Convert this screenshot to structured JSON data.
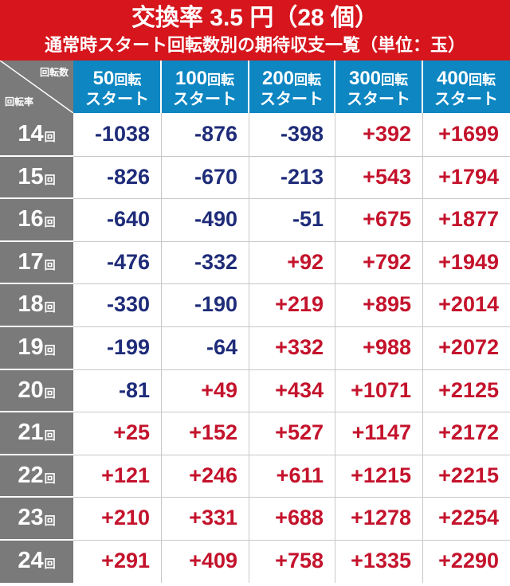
{
  "title": {
    "line1": "交換率 3.5 円（28 個）",
    "line2": "通常時スタート回転数別の期待収支一覧（単位：玉）"
  },
  "corner": {
    "top_label": "回転数",
    "bottom_label": "回転率"
  },
  "columns": [
    {
      "big": "50",
      "small": "回転",
      "line2": "スタート"
    },
    {
      "big": "100",
      "small": "回転",
      "line2": "スタート"
    },
    {
      "big": "200",
      "small": "回転",
      "line2": "スタート"
    },
    {
      "big": "300",
      "small": "回転",
      "line2": "スタート"
    },
    {
      "big": "400",
      "small": "回転",
      "line2": "スタート"
    }
  ],
  "row_unit": "回",
  "rows": [
    {
      "rate": "14",
      "values": [
        "-1038",
        "-876",
        "-398",
        "+392",
        "+1699"
      ]
    },
    {
      "rate": "15",
      "values": [
        "-826",
        "-670",
        "-213",
        "+543",
        "+1794"
      ]
    },
    {
      "rate": "16",
      "values": [
        "-640",
        "-490",
        "-51",
        "+675",
        "+1877"
      ]
    },
    {
      "rate": "17",
      "values": [
        "-476",
        "-332",
        "+92",
        "+792",
        "+1949"
      ]
    },
    {
      "rate": "18",
      "values": [
        "-330",
        "-190",
        "+219",
        "+895",
        "+2014"
      ]
    },
    {
      "rate": "19",
      "values": [
        "-199",
        "-64",
        "+332",
        "+988",
        "+2072"
      ]
    },
    {
      "rate": "20",
      "values": [
        "-81",
        "+49",
        "+434",
        "+1071",
        "+2125"
      ]
    },
    {
      "rate": "21",
      "values": [
        "+25",
        "+152",
        "+527",
        "+1147",
        "+2172"
      ]
    },
    {
      "rate": "22",
      "values": [
        "+121",
        "+246",
        "+611",
        "+1215",
        "+2215"
      ]
    },
    {
      "rate": "23",
      "values": [
        "+210",
        "+331",
        "+688",
        "+1278",
        "+2254"
      ]
    },
    {
      "rate": "24",
      "values": [
        "+291",
        "+409",
        "+758",
        "+1335",
        "+2290"
      ]
    }
  ],
  "colors": {
    "title_bg": "#d6151c",
    "header_bg": "#0d86c2",
    "row_header_bg": "#7a7a7a",
    "negative": "#1f2c79",
    "positive": "#c4132c"
  }
}
